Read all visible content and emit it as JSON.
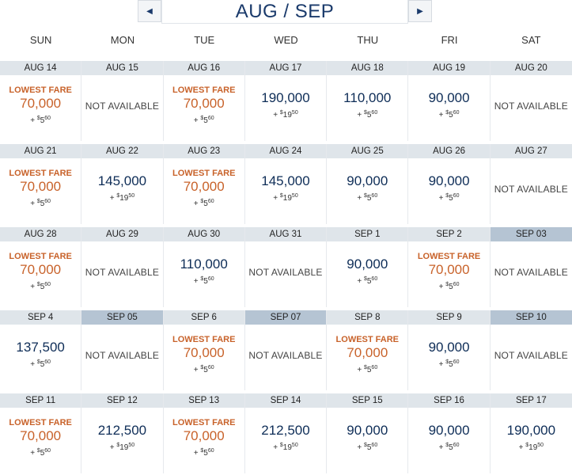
{
  "header": {
    "title": "AUG / SEP",
    "prev_icon": "◀",
    "next_icon": "▶"
  },
  "weekdays": [
    "SUN",
    "MON",
    "TUE",
    "WED",
    "THU",
    "FRI",
    "SAT"
  ],
  "labels": {
    "lowest_fare": "LOWEST FARE",
    "not_available": "NOT AVAILABLE"
  },
  "colors": {
    "accent_orange": "#c8622a",
    "fare_navy": "#0e2d57",
    "date_bar": "#dfe5ea",
    "date_bar_highlight": "#b5c4d3"
  },
  "weeks": [
    [
      {
        "date": "AUG 14",
        "lowest": true,
        "fare": "70,000",
        "tax": "5",
        "cents": "60"
      },
      {
        "date": "AUG 15",
        "na": true
      },
      {
        "date": "AUG 16",
        "lowest": true,
        "fare": "70,000",
        "tax": "5",
        "cents": "60"
      },
      {
        "date": "AUG 17",
        "fare": "190,000",
        "tax": "19",
        "cents": "50"
      },
      {
        "date": "AUG 18",
        "fare": "110,000",
        "tax": "5",
        "cents": "60"
      },
      {
        "date": "AUG 19",
        "fare": "90,000",
        "tax": "5",
        "cents": "60"
      },
      {
        "date": "AUG 20",
        "na": true
      }
    ],
    [
      {
        "date": "AUG 21",
        "lowest": true,
        "fare": "70,000",
        "tax": "5",
        "cents": "60"
      },
      {
        "date": "AUG 22",
        "fare": "145,000",
        "tax": "19",
        "cents": "50"
      },
      {
        "date": "AUG 23",
        "lowest": true,
        "fare": "70,000",
        "tax": "5",
        "cents": "60"
      },
      {
        "date": "AUG 24",
        "fare": "145,000",
        "tax": "19",
        "cents": "50"
      },
      {
        "date": "AUG 25",
        "fare": "90,000",
        "tax": "5",
        "cents": "60"
      },
      {
        "date": "AUG 26",
        "fare": "90,000",
        "tax": "5",
        "cents": "60"
      },
      {
        "date": "AUG 27",
        "na": true
      }
    ],
    [
      {
        "date": "AUG 28",
        "lowest": true,
        "fare": "70,000",
        "tax": "5",
        "cents": "60"
      },
      {
        "date": "AUG 29",
        "na": true
      },
      {
        "date": "AUG 30",
        "fare": "110,000",
        "tax": "5",
        "cents": "60"
      },
      {
        "date": "AUG 31",
        "na": true
      },
      {
        "date": "SEP 1",
        "fare": "90,000",
        "tax": "5",
        "cents": "60"
      },
      {
        "date": "SEP 2",
        "lowest": true,
        "fare": "70,000",
        "tax": "5",
        "cents": "60"
      },
      {
        "date": "SEP 03",
        "na": true,
        "highlight": true
      }
    ],
    [
      {
        "date": "SEP 4",
        "fare": "137,500",
        "tax": "5",
        "cents": "60"
      },
      {
        "date": "SEP 05",
        "na": true,
        "highlight": true
      },
      {
        "date": "SEP 6",
        "lowest": true,
        "fare": "70,000",
        "tax": "5",
        "cents": "60"
      },
      {
        "date": "SEP 07",
        "na": true,
        "highlight": true
      },
      {
        "date": "SEP 8",
        "lowest": true,
        "fare": "70,000",
        "tax": "5",
        "cents": "60"
      },
      {
        "date": "SEP 9",
        "fare": "90,000",
        "tax": "5",
        "cents": "60"
      },
      {
        "date": "SEP 10",
        "na": true,
        "highlight": true
      }
    ],
    [
      {
        "date": "SEP 11",
        "lowest": true,
        "fare": "70,000",
        "tax": "5",
        "cents": "60"
      },
      {
        "date": "SEP 12",
        "fare": "212,500",
        "tax": "19",
        "cents": "50"
      },
      {
        "date": "SEP 13",
        "lowest": true,
        "fare": "70,000",
        "tax": "5",
        "cents": "60"
      },
      {
        "date": "SEP 14",
        "fare": "212,500",
        "tax": "19",
        "cents": "50"
      },
      {
        "date": "SEP 15",
        "fare": "90,000",
        "tax": "5",
        "cents": "60"
      },
      {
        "date": "SEP 16",
        "fare": "90,000",
        "tax": "5",
        "cents": "60"
      },
      {
        "date": "SEP 17",
        "fare": "190,000",
        "tax": "19",
        "cents": "50"
      }
    ]
  ]
}
